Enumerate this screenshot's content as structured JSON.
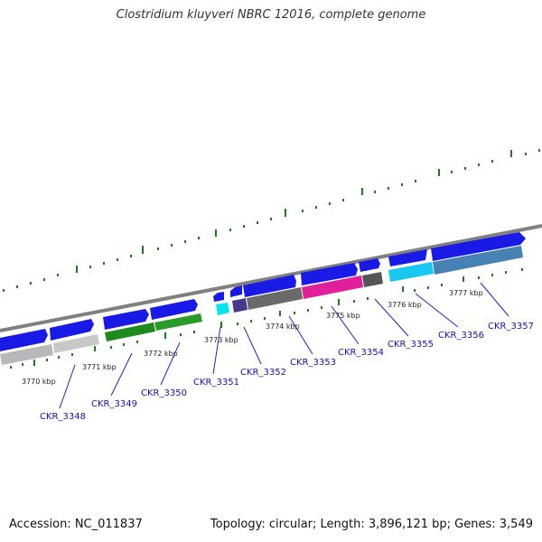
{
  "header": {
    "title": "Clostridium kluyveri NBRC 12016, complete genome"
  },
  "footer": {
    "accession": "Accession: NC_011837",
    "summary": "Topology: circular; Length: 3,896,121 bp; Genes: 3,549"
  },
  "scale_labels": [
    "3770 kbp",
    "3771 kbp",
    "3772 kbp",
    "3773 kbp",
    "3774 kbp",
    "3775 kbp",
    "3776 kbp",
    "3777 kbp"
  ],
  "gene_labels": [
    "CKR_3348",
    "CKR_3349",
    "CKR_3350",
    "CKR_3351",
    "CKR_3352",
    "CKR_3353",
    "CKR_3354",
    "CKR_3355",
    "CKR_3356",
    "CKR_3357"
  ],
  "colors": {
    "backbone": "#808080",
    "cds_arrow": "#1a1ae6",
    "tick": "#1f7a1f",
    "gene_label": "#1010cc"
  }
}
